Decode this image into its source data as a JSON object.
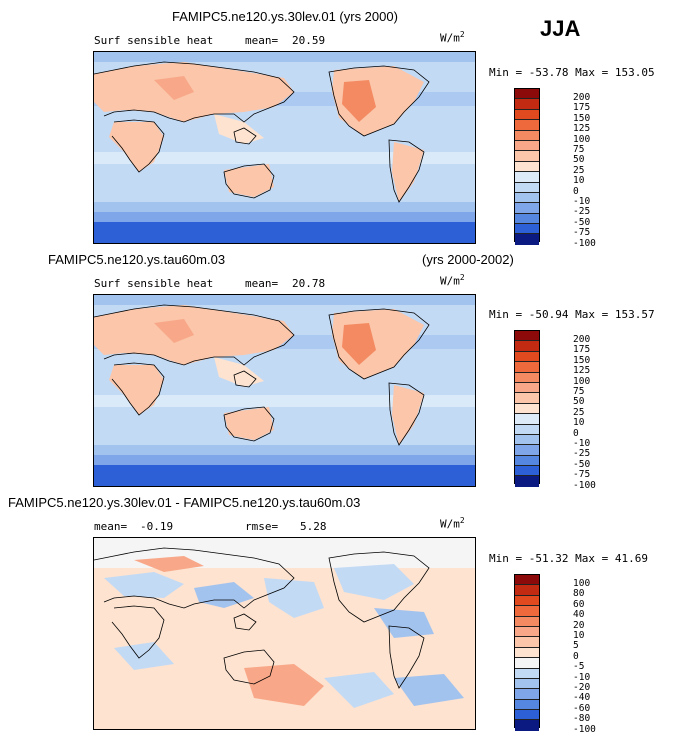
{
  "season": "JJA",
  "panels": [
    {
      "title": "FAMIPC5.ne120.ys.30lev.01 (yrs 2000)",
      "title_right": "",
      "variable": "Surf sensible heat",
      "stat1_label": "mean=",
      "stat1_value": "20.59",
      "stat2_label": "",
      "stat2_value": "",
      "units": "W/m",
      "units_exp": "2",
      "minmax": "Min = -53.78 Max = 153.05",
      "levels": [
        "200",
        "175",
        "150",
        "125",
        "100",
        "75",
        "50",
        "25",
        "10",
        "0",
        "-10",
        "-25",
        "-50",
        "-75",
        "-100"
      ],
      "colors": [
        "#8c0a0a",
        "#c22a12",
        "#e04a1e",
        "#ee6a3c",
        "#f48a62",
        "#f8a888",
        "#fbc6aa",
        "#fde3d0",
        "#ddebf8",
        "#c3daf5",
        "#a3c3ef",
        "#7ea6e8",
        "#5586e0",
        "#2d5fd6",
        "#1034b8",
        "#0a1a80"
      ]
    },
    {
      "title": "FAMIPC5.ne120.ys.tau60m.03",
      "title_right": "(yrs 2000-2002)",
      "variable": "Surf sensible heat",
      "stat1_label": "mean=",
      "stat1_value": "20.78",
      "stat2_label": "",
      "stat2_value": "",
      "units": "W/m",
      "units_exp": "2",
      "minmax": "Min = -50.94 Max = 153.57",
      "levels": [
        "200",
        "175",
        "150",
        "125",
        "100",
        "75",
        "50",
        "25",
        "10",
        "0",
        "-10",
        "-25",
        "-50",
        "-75",
        "-100"
      ],
      "colors": [
        "#8c0a0a",
        "#c22a12",
        "#e04a1e",
        "#ee6a3c",
        "#f48a62",
        "#f8a888",
        "#fbc6aa",
        "#fde3d0",
        "#ddebf8",
        "#c3daf5",
        "#a3c3ef",
        "#7ea6e8",
        "#5586e0",
        "#2d5fd6",
        "#1034b8",
        "#0a1a80"
      ]
    },
    {
      "title": "FAMIPC5.ne120.ys.30lev.01 - FAMIPC5.ne120.ys.tau60m.03",
      "title_right": "",
      "variable": "",
      "stat1_label": "mean=",
      "stat1_value": "-0.19",
      "stat2_label": "rmse=",
      "stat2_value": "5.28",
      "units": "W/m",
      "units_exp": "2",
      "minmax": "Min = -51.32 Max = 41.69",
      "levels": [
        "100",
        "80",
        "60",
        "40",
        "20",
        "10",
        "5",
        "0",
        "-5",
        "-10",
        "-20",
        "-40",
        "-60",
        "-80",
        "-100"
      ],
      "colors": [
        "#8c0a0a",
        "#c22a12",
        "#e04a1e",
        "#ee6a3c",
        "#f48a62",
        "#f8a888",
        "#fbc6aa",
        "#fde3d0",
        "#f5f5f5",
        "#c3daf5",
        "#a3c3ef",
        "#7ea6e8",
        "#5586e0",
        "#2d5fd6",
        "#1034b8",
        "#0a1a80"
      ]
    }
  ]
}
